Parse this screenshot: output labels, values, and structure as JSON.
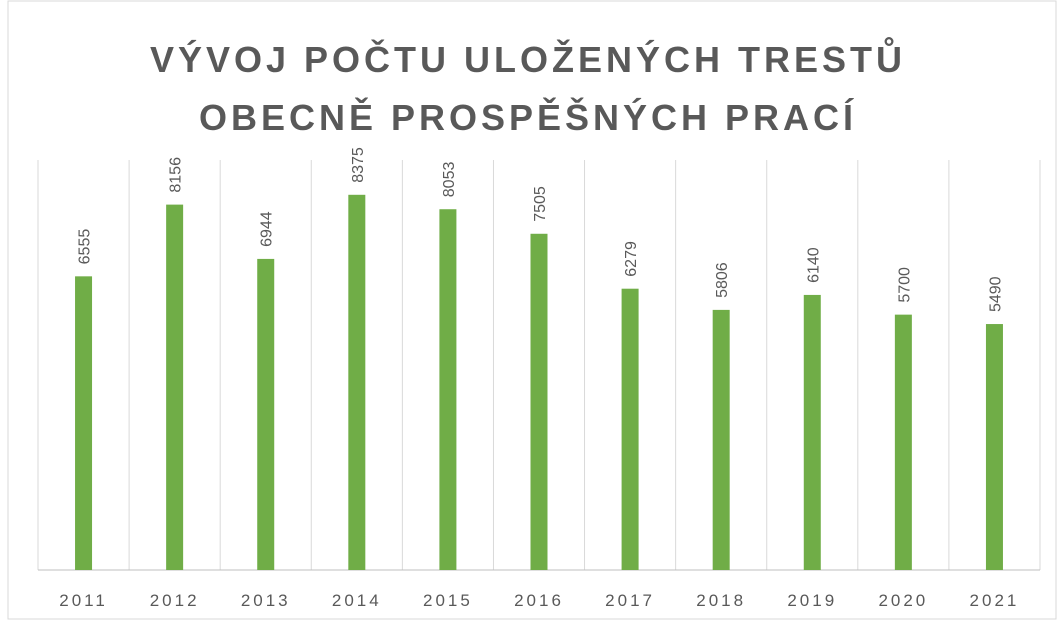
{
  "chart_data": {
    "type": "bar",
    "title": [
      "VÝVOJ POČTU ULOŽENÝCH TRESTŮ",
      "OBECNĚ PROSPĚŠNÝCH PRACÍ"
    ],
    "categories": [
      "2011",
      "2012",
      "2013",
      "2014",
      "2015",
      "2016",
      "2017",
      "2018",
      "2019",
      "2020",
      "2021"
    ],
    "values": [
      6555,
      8156,
      6944,
      8375,
      8053,
      7505,
      6279,
      5806,
      6140,
      5700,
      5490
    ],
    "color": "#70ad47",
    "ylim": [
      0,
      10000
    ],
    "grid": true
  }
}
